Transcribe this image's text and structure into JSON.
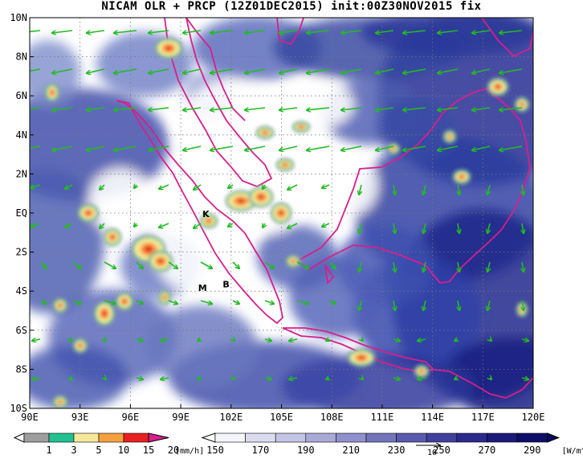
{
  "title": "NICAM OLR + PRCP (12Z01DEC2015) init:00Z30NOV2015 fix",
  "map": {
    "lon_range": [
      90,
      120
    ],
    "lat_range": [
      -10,
      10
    ],
    "x_ticks": [
      "90E",
      "93E",
      "96E",
      "99E",
      "102E",
      "105E",
      "108E",
      "111E",
      "114E",
      "117E",
      "120E"
    ],
    "y_ticks": [
      "10N",
      "8N",
      "6N",
      "4N",
      "2N",
      "EQ",
      "2S",
      "4S",
      "6S",
      "8S",
      "10S"
    ],
    "place_labels": [
      {
        "text": "K",
        "lon": 100.5,
        "lat": -0.2
      },
      {
        "text": "M",
        "lon": 100.3,
        "lat": -4.0
      },
      {
        "text": "B",
        "lon": 101.7,
        "lat": -3.8
      }
    ],
    "grid": "dotted",
    "colors": {
      "cloud": "#1e2890",
      "coast": "#d81e8c",
      "wind": "#22bb22"
    }
  },
  "prcp_colorbar": {
    "colors": [
      "#9e9e9e",
      "#20c290",
      "#f6e89a",
      "#f5a040",
      "#e82020",
      "#d81e8c"
    ],
    "ticks": [
      "1",
      "3",
      "5",
      "10",
      "15",
      "20"
    ],
    "unit": "[mm/h]"
  },
  "olr_colorbar": {
    "colors": [
      "#f4f4fb",
      "#dcdcf0",
      "#c4c4e4",
      "#aaaad8",
      "#9090cc",
      "#7474bc",
      "#5a5aae",
      "#40409e",
      "#2a2a8c",
      "#1a1a7a",
      "#0e0e6a"
    ],
    "ticks": [
      "150",
      "170",
      "190",
      "210",
      "230",
      "250",
      "270",
      "290"
    ],
    "unit": "[W/m^2]",
    "vector_ref": "10"
  }
}
